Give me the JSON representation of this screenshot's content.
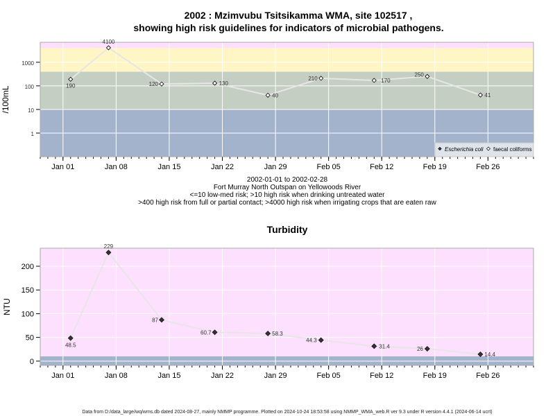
{
  "page": {
    "title_line1": "2002 : Mzimvubu Tsitsikamma WMA, site 102517 ,",
    "title_line2": "showing high risk guidelines for indicators of microbial pathogens.",
    "caption_lines": [
      "2002-01-01 to 2002-02-28",
      "Fort Murray North Outspan on Yellowoods River",
      "<=10 low-med risk; >10 high risk when drinking untreated water",
      ">400 high risk from full or partial contact; >4000 high risk when irrigating crops that are eaten raw"
    ],
    "turbidity_title": "Turbidity",
    "footer": "Data from D:/data_large/wq/wms.db dated 2024-08-27, mainly NMMP programme. Plotted on 2024-10-24 18:53:58 using NMMP_WMA_web.R ver 9.3 under R version 4.4.1 (2024-06-14 ucrt)"
  },
  "chart_data": [
    {
      "type": "line",
      "y_scale": "log",
      "ylabel": "/100mL",
      "x_ticks": [
        "Jan 01",
        "Jan 08",
        "Jan 15",
        "Jan 22",
        "Jan 29",
        "Feb 05",
        "Feb 12",
        "Feb 19",
        "Feb 26"
      ],
      "x_tick_dates": [
        "2002-01-01",
        "2002-01-08",
        "2002-01-15",
        "2002-01-22",
        "2002-01-29",
        "2002-02-05",
        "2002-02-12",
        "2002-02-19",
        "2002-02-26"
      ],
      "xlim": [
        "2001-12-29",
        "2002-03-04"
      ],
      "y_ticks": [
        1,
        10,
        100,
        1000
      ],
      "ylim": [
        0.1,
        7000
      ],
      "bands": [
        {
          "from": 0.1,
          "to": 10,
          "color": "#a3b3cc"
        },
        {
          "from": 10,
          "to": 400,
          "color": "#c5cec2"
        },
        {
          "from": 400,
          "to": 4000,
          "color": "#fff5c5"
        },
        {
          "from": 4000,
          "to": 7000,
          "color": "#fde0fd"
        }
      ],
      "legend": {
        "position": "bottom-right",
        "items": [
          "Escherichia coli",
          "faecal coliforms"
        ]
      },
      "series": [
        {
          "name": "faecal coliforms",
          "x": [
            "2002-01-02",
            "2002-01-07",
            "2002-01-14",
            "2002-01-21",
            "2002-01-28",
            "2002-02-04",
            "2002-02-11",
            "2002-02-18",
            "2002-02-25"
          ],
          "y": [
            190,
            4100,
            120,
            130,
            40,
            210,
            170,
            250,
            41
          ],
          "labels": [
            "190",
            "4100",
            "120",
            "130",
            "40",
            "210",
            "170",
            "250",
            "41"
          ],
          "color": "#e6e6e6"
        }
      ]
    },
    {
      "type": "line",
      "title": "Turbidity",
      "ylabel": "NTU",
      "x_ticks": [
        "Jan 01",
        "Jan 08",
        "Jan 15",
        "Jan 22",
        "Jan 29",
        "Feb 05",
        "Feb 12",
        "Feb 19",
        "Feb 26"
      ],
      "x_tick_dates": [
        "2002-01-01",
        "2002-01-08",
        "2002-01-15",
        "2002-01-22",
        "2002-01-29",
        "2002-02-05",
        "2002-02-12",
        "2002-02-19",
        "2002-02-26"
      ],
      "xlim": [
        "2001-12-29",
        "2002-03-04"
      ],
      "y_ticks": [
        0,
        50,
        100,
        150,
        200
      ],
      "ylim": [
        -9,
        238
      ],
      "bands": [
        {
          "from": -9,
          "to": 10,
          "color": "#a3b3cc"
        },
        {
          "from": 10,
          "to": 238,
          "color": "#fde0fd"
        }
      ],
      "series": [
        {
          "x": [
            "2002-01-02",
            "2002-01-07",
            "2002-01-14",
            "2002-01-21",
            "2002-01-28",
            "2002-02-04",
            "2002-02-11",
            "2002-02-18",
            "2002-02-25"
          ],
          "y": [
            48.5,
            229,
            87,
            60.7,
            58.3,
            44.3,
            31.4,
            26,
            14.4
          ],
          "labels": [
            "48.5",
            "229",
            "87",
            "60.7",
            "58.3",
            "44.3",
            "31.4",
            "26",
            "14.4"
          ],
          "color": "#e6e6e6"
        }
      ]
    }
  ]
}
